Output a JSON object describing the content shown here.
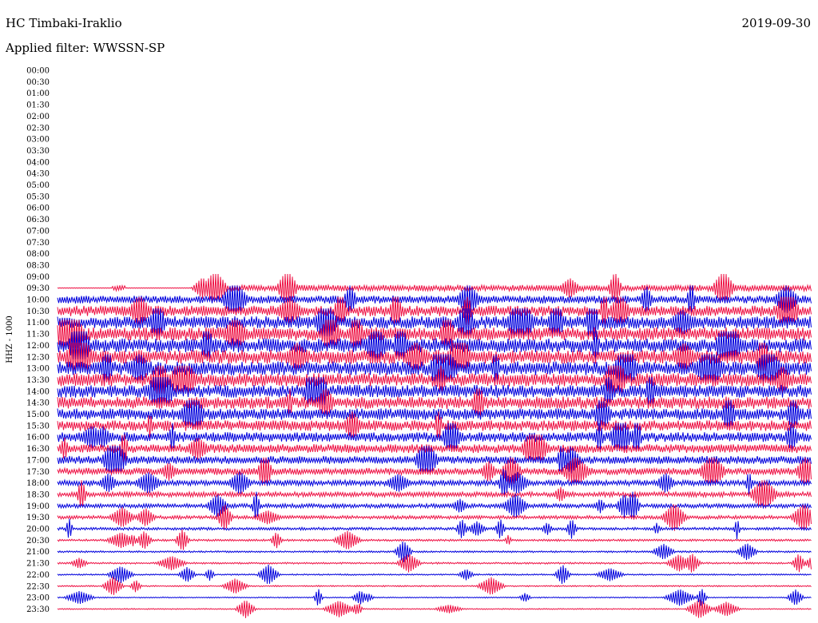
{
  "header": {
    "station": "HC Timbaki-Iraklio",
    "date": "2019-09-30",
    "filter": "Applied filter: WWSSN-SP"
  },
  "chart_data": {
    "type": "line",
    "title": "HC Timbaki-Iraklio",
    "ylabel": "HHZ - 1000",
    "series_colors": [
      "#ee1144",
      "#0000dd"
    ],
    "row_interval_minutes": 30,
    "row_labels": [
      "00:00",
      "00:30",
      "01:00",
      "01:30",
      "02:00",
      "02:30",
      "03:00",
      "03:30",
      "04:00",
      "04:30",
      "05:00",
      "05:30",
      "06:00",
      "06:30",
      "07:00",
      "07:30",
      "08:00",
      "08:30",
      "09:00",
      "09:30",
      "10:00",
      "10:30",
      "11:00",
      "11:30",
      "12:00",
      "12:30",
      "13:00",
      "13:30",
      "14:00",
      "14:30",
      "15:00",
      "15:30",
      "16:00",
      "16:30",
      "17:00",
      "17:30",
      "18:00",
      "18:30",
      "19:00",
      "19:30",
      "20:00",
      "20:30",
      "21:00",
      "21:30",
      "22:00",
      "22:30",
      "23:00",
      "23:30"
    ],
    "data_start_row": "09:30",
    "noise_amplitude_by_row": [
      0,
      0,
      0,
      0,
      0,
      0,
      0,
      0,
      0,
      0,
      0,
      0,
      0,
      0,
      0,
      0,
      0,
      0,
      0,
      0.35,
      0.45,
      0.6,
      0.7,
      0.75,
      0.8,
      0.8,
      0.78,
      0.75,
      0.72,
      0.7,
      0.65,
      0.6,
      0.55,
      0.5,
      0.45,
      0.4,
      0.32,
      0.28,
      0.24,
      0.2,
      0.16,
      0.12,
      0.1,
      0.1,
      0.08,
      0.08,
      0.06,
      0.06
    ]
  }
}
